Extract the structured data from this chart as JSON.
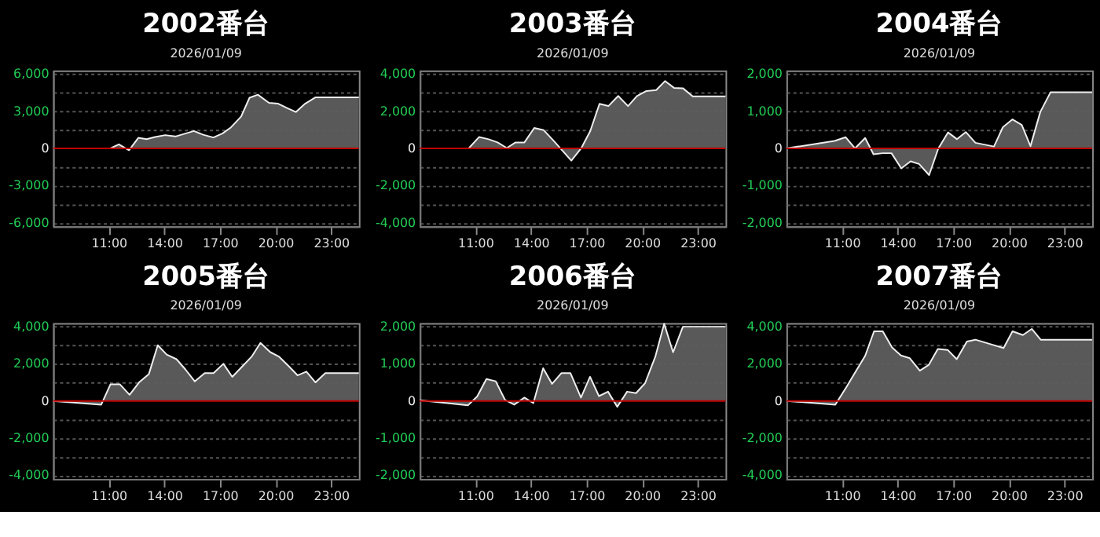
{
  "chart_data": [
    {
      "type": "area",
      "title": "2002番台",
      "subtitle": "2026/01/09",
      "color": "#5e5e5e",
      "grid": "y",
      "xlim": [
        8,
        24.5
      ],
      "xticks": [
        {
          "value": 11,
          "label": "11:00"
        },
        {
          "value": 14,
          "label": "14:00"
        },
        {
          "value": 17,
          "label": "17:00"
        },
        {
          "value": 20,
          "label": "20:00"
        },
        {
          "value": 23,
          "label": "23:00"
        }
      ],
      "ylim": [
        -6300,
        6300
      ],
      "yticks": [
        {
          "value": -6000,
          "label": "-6,000"
        },
        {
          "value": -4500,
          "label": null
        },
        {
          "value": -3000,
          "label": "-3,000"
        },
        {
          "value": -1500,
          "label": null
        },
        0,
        {
          "value": 1500,
          "label": null
        },
        {
          "value": 3000,
          "label": "3,000"
        },
        {
          "value": 4500,
          "label": null
        },
        {
          "value": 6000,
          "label": "6,000"
        }
      ],
      "ref_lines": [
        {
          "axis": "y",
          "value": 0,
          "color": "#c00000"
        }
      ],
      "x": [
        8.0,
        11.1,
        11.55,
        12.1,
        12.6,
        13.05,
        13.5,
        14.05,
        14.6,
        15.1,
        15.6,
        16.1,
        16.65,
        17.15,
        17.6,
        18.15,
        18.6,
        19.05,
        19.65,
        20.15,
        20.65,
        21.1,
        21.6,
        22.15,
        24.5
      ],
      "values": [
        0,
        0,
        330,
        -150,
        850,
        740,
        920,
        1070,
        960,
        1180,
        1400,
        1100,
        880,
        1210,
        1700,
        2580,
        4090,
        4340,
        3680,
        3610,
        3240,
        2940,
        3610,
        4120,
        4120
      ]
    },
    {
      "type": "area",
      "title": "2003番台",
      "subtitle": "2026/01/09",
      "color": "#5e5e5e",
      "grid": "y",
      "xlim": [
        8,
        24.5
      ],
      "xticks": [
        {
          "value": 11,
          "label": "11:00"
        },
        {
          "value": 14,
          "label": "14:00"
        },
        {
          "value": 17,
          "label": "17:00"
        },
        {
          "value": 20,
          "label": "20:00"
        },
        {
          "value": 23,
          "label": "23:00"
        }
      ],
      "ylim": [
        -4200,
        4200
      ],
      "yticks": [
        {
          "value": -4000,
          "label": "-4,000"
        },
        {
          "value": -3000,
          "label": null
        },
        {
          "value": -2000,
          "label": "-2,000"
        },
        {
          "value": -1000,
          "label": null
        },
        0,
        {
          "value": 1000,
          "label": null
        },
        {
          "value": 2000,
          "label": "2,000"
        },
        {
          "value": 3000,
          "label": null
        },
        {
          "value": 4000,
          "label": "4,000"
        }
      ],
      "ref_lines": [
        {
          "axis": "y",
          "value": 0,
          "color": "#c00000"
        }
      ],
      "x": [
        8.0,
        10.64,
        11.2,
        11.72,
        12.2,
        12.7,
        13.17,
        13.65,
        14.18,
        14.69,
        15.2,
        15.7,
        16.18,
        16.71,
        17.2,
        17.7,
        18.18,
        18.71,
        19.24,
        19.72,
        20.23,
        20.76,
        21.24,
        21.72,
        22.2,
        22.73,
        24.5
      ],
      "values": [
        0,
        0,
        610,
        490,
        320,
        20,
        320,
        320,
        1100,
        980,
        440,
        -120,
        -660,
        0,
        930,
        2400,
        2280,
        2820,
        2280,
        2820,
        3090,
        3140,
        3630,
        3260,
        3240,
        2800,
        2800
      ]
    },
    {
      "type": "area",
      "title": "2004番台",
      "subtitle": "2026/01/09",
      "color": "#5e5e5e",
      "grid": "y",
      "xlim": [
        8,
        24.5
      ],
      "xticks": [
        {
          "value": 11,
          "label": "11:00"
        },
        {
          "value": 14,
          "label": "14:00"
        },
        {
          "value": 17,
          "label": "17:00"
        },
        {
          "value": 20,
          "label": "20:00"
        },
        {
          "value": 23,
          "label": "23:00"
        }
      ],
      "ylim": [
        -2100,
        2100
      ],
      "yticks": [
        {
          "value": -2000,
          "label": "-2,000"
        },
        {
          "value": -1500,
          "label": null
        },
        {
          "value": -1000,
          "label": "-1,000"
        },
        {
          "value": -500,
          "label": null
        },
        0,
        {
          "value": 500,
          "label": null
        },
        {
          "value": 1000,
          "label": "1,000"
        },
        {
          "value": 1500,
          "label": null
        },
        {
          "value": 2000,
          "label": "2,000"
        }
      ],
      "ref_lines": [
        {
          "axis": "y",
          "value": 0,
          "color": "#c00000"
        }
      ],
      "x": [
        8.0,
        10.6,
        11.2,
        11.7,
        12.25,
        12.7,
        13.2,
        13.67,
        14.2,
        14.7,
        15.16,
        15.7,
        16.2,
        16.72,
        17.2,
        17.68,
        18.2,
        19.2,
        19.68,
        20.2,
        20.7,
        21.17,
        21.7,
        22.25,
        24.5
      ],
      "values": [
        0,
        200,
        300,
        0,
        280,
        -160,
        -130,
        -130,
        -540,
        -350,
        -420,
        -720,
        0,
        430,
        250,
        440,
        150,
        50,
        570,
        780,
        630,
        60,
        980,
        1510,
        1510
      ]
    },
    {
      "type": "area",
      "title": "2005番台",
      "subtitle": "2026/01/09",
      "color": "#5e5e5e",
      "grid": "y",
      "xlim": [
        8,
        24.5
      ],
      "xticks": [
        {
          "value": 11,
          "label": "11:00"
        },
        {
          "value": 14,
          "label": "14:00"
        },
        {
          "value": 17,
          "label": "17:00"
        },
        {
          "value": 20,
          "label": "20:00"
        },
        {
          "value": 23,
          "label": "23:00"
        }
      ],
      "ylim": [
        -4200,
        4200
      ],
      "yticks": [
        {
          "value": -4000,
          "label": "-4,000"
        },
        {
          "value": -3000,
          "label": null
        },
        {
          "value": -2000,
          "label": "-2,000"
        },
        {
          "value": -1000,
          "label": null
        },
        0,
        {
          "value": 1000,
          "label": null
        },
        {
          "value": 2000,
          "label": "2,000"
        },
        {
          "value": 3000,
          "label": null
        },
        {
          "value": 4000,
          "label": "4,000"
        }
      ],
      "ref_lines": [
        {
          "axis": "y",
          "value": 0,
          "color": "#c00000"
        }
      ],
      "x": [
        8.0,
        10.6,
        11.1,
        11.6,
        12.13,
        12.64,
        13.17,
        13.65,
        14.13,
        14.66,
        15.14,
        15.65,
        16.18,
        16.66,
        17.19,
        17.67,
        18.23,
        18.71,
        19.19,
        19.72,
        20.2,
        20.71,
        21.19,
        21.67,
        22.16,
        22.69,
        24.5
      ],
      "values": [
        0,
        -200,
        900,
        900,
        330,
        1000,
        1450,
        3000,
        2500,
        2250,
        1700,
        1050,
        1500,
        1500,
        2000,
        1300,
        1880,
        2380,
        3130,
        2630,
        2380,
        1880,
        1380,
        1580,
        1000,
        1500,
        1500
      ]
    },
    {
      "type": "area",
      "title": "2006番台",
      "subtitle": "2026/01/09",
      "color": "#5e5e5e",
      "grid": "y",
      "xlim": [
        8,
        24.5
      ],
      "xticks": [
        {
          "value": 11,
          "label": "11:00"
        },
        {
          "value": 14,
          "label": "14:00"
        },
        {
          "value": 17,
          "label": "17:00"
        },
        {
          "value": 20,
          "label": "20:00"
        },
        {
          "value": 23,
          "label": "23:00"
        }
      ],
      "ylim": [
        -2100,
        2100
      ],
      "yticks": [
        {
          "value": -2000,
          "label": "-2,000"
        },
        {
          "value": -1500,
          "label": null
        },
        {
          "value": -1000,
          "label": "-1,000"
        },
        {
          "value": -500,
          "label": null
        },
        0,
        {
          "value": 500,
          "label": null
        },
        {
          "value": 1000,
          "label": "1,000"
        },
        {
          "value": 1500,
          "label": null
        },
        {
          "value": 2000,
          "label": "2,000"
        }
      ],
      "ref_lines": [
        {
          "axis": "y",
          "value": 0,
          "color": "#c00000"
        }
      ],
      "x": [
        8.0,
        10.6,
        11.1,
        11.6,
        12.1,
        12.6,
        13.1,
        13.65,
        14.13,
        14.66,
        15.14,
        15.65,
        16.13,
        16.7,
        17.19,
        17.67,
        18.16,
        18.66,
        19.19,
        19.67,
        20.16,
        20.71,
        21.19,
        21.67,
        22.2,
        24.5
      ],
      "values": [
        20,
        -120,
        120,
        590,
        530,
        30,
        -100,
        90,
        -60,
        880,
        460,
        750,
        750,
        90,
        650,
        130,
        250,
        -160,
        250,
        210,
        480,
        1190,
        2080,
        1310,
        2000,
        2000
      ]
    },
    {
      "type": "area",
      "title": "2007番台",
      "subtitle": "2026/01/09",
      "color": "#5e5e5e",
      "grid": "y",
      "xlim": [
        8,
        24.5
      ],
      "xticks": [
        {
          "value": 11,
          "label": "11:00"
        },
        {
          "value": 14,
          "label": "14:00"
        },
        {
          "value": 17,
          "label": "17:00"
        },
        {
          "value": 20,
          "label": "20:00"
        },
        {
          "value": 23,
          "label": "23:00"
        }
      ],
      "ylim": [
        -4200,
        4200
      ],
      "yticks": [
        {
          "value": -4000,
          "label": "-4,000"
        },
        {
          "value": -3000,
          "label": null
        },
        {
          "value": -2000,
          "label": "-2,000"
        },
        {
          "value": -1000,
          "label": null
        },
        0,
        {
          "value": 1000,
          "label": null
        },
        {
          "value": 2000,
          "label": "2,000"
        },
        {
          "value": 3000,
          "label": null
        },
        {
          "value": 4000,
          "label": "4,000"
        }
      ],
      "ref_lines": [
        {
          "axis": "y",
          "value": 0,
          "color": "#c00000"
        }
      ],
      "x": [
        8.0,
        10.64,
        11.24,
        11.72,
        12.25,
        12.73,
        13.2,
        13.7,
        14.18,
        14.66,
        15.2,
        15.69,
        16.17,
        16.7,
        17.19,
        17.74,
        18.2,
        19.72,
        20.2,
        20.76,
        21.24,
        21.72,
        24.5
      ],
      "values": [
        0,
        -200,
        750,
        1550,
        2430,
        3750,
        3750,
        2880,
        2450,
        2300,
        1630,
        1950,
        2800,
        2750,
        2250,
        3200,
        3300,
        2850,
        3750,
        3550,
        3880,
        3300,
        3300
      ]
    }
  ]
}
